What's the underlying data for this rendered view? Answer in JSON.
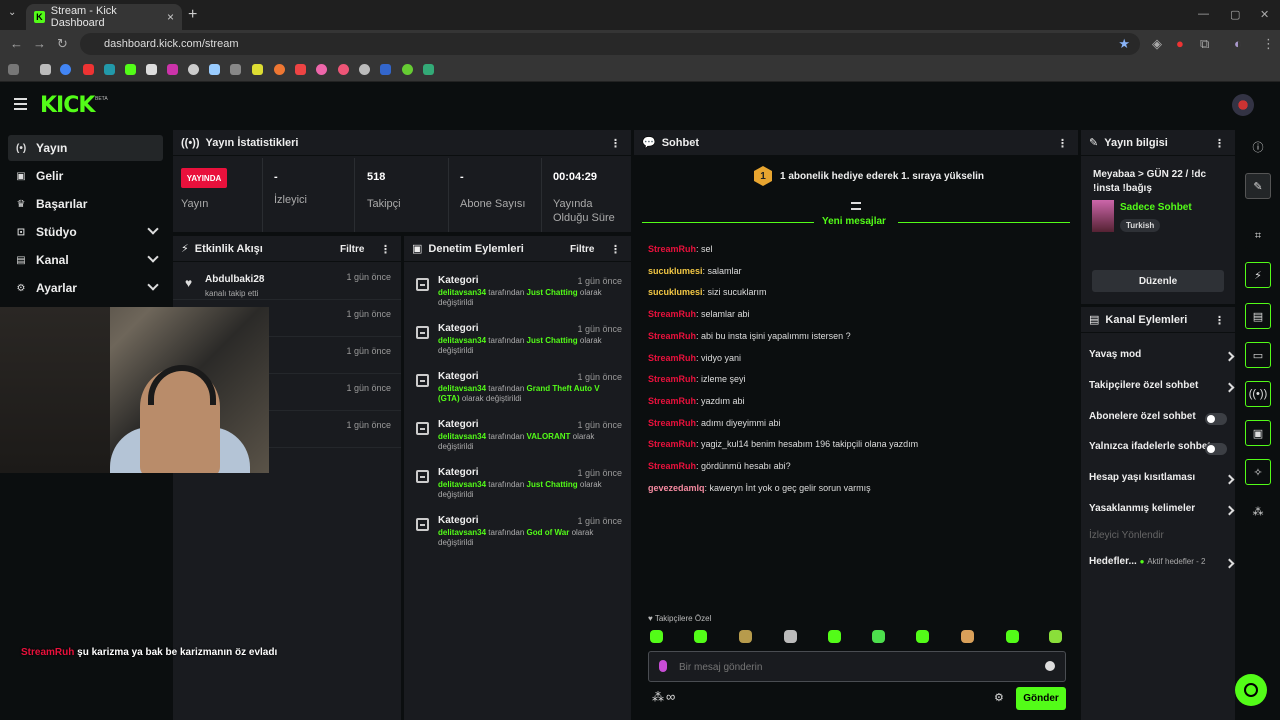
{
  "browser": {
    "tab_title": "Stream - Kick Dashboard",
    "url": "dashboard.kick.com/stream"
  },
  "brand": {
    "logo": "KICK",
    "beta": "BETA",
    "accent": "#53fc18",
    "live_red": "#e9113c"
  },
  "sidebar": {
    "items": [
      {
        "label": "Yayın",
        "icon": "broadcast-icon"
      },
      {
        "label": "Gelir",
        "icon": "revenue-icon"
      },
      {
        "label": "Başarılar",
        "icon": "trophy-icon"
      },
      {
        "label": "Stüdyo",
        "icon": "studio-icon"
      },
      {
        "label": "Kanal",
        "icon": "channel-icon"
      },
      {
        "label": "Ayarlar",
        "icon": "gear-icon"
      }
    ]
  },
  "stats": {
    "title": "Yayın İstatistikleri",
    "live_badge": "YAYINDA",
    "live_label": "Yayın",
    "viewers": {
      "value": "-",
      "label": "İzleyici"
    },
    "followers": {
      "value": "518",
      "label": "Takipçi"
    },
    "subs": {
      "value": "-",
      "label": "Abone Sayısı"
    },
    "duration": {
      "value": "00:04:29",
      "label": "Yayında Olduğu Süre"
    }
  },
  "activity": {
    "title": "Etkinlik Akışı",
    "filter": "Filtre",
    "rows": [
      {
        "name": "Abdulbaki28",
        "desc": "kanalı takip etti",
        "time": "1 gün önce"
      },
      {
        "name": "",
        "desc": "",
        "time": "1 gün önce"
      },
      {
        "name": "",
        "desc": "",
        "time": "1 gün önce"
      },
      {
        "name": "",
        "desc": "",
        "time": "1 gün önce"
      },
      {
        "name": "",
        "desc": "",
        "time": "1 gün önce"
      }
    ]
  },
  "moderation": {
    "title": "Denetim Eylemleri",
    "filter": "Filtre",
    "rows": [
      {
        "title": "Kategori",
        "time": "1 gün önce",
        "user": "delitavsan34",
        "mid": "tarafından",
        "cat": "Just Chatting",
        "end": "olarak değiştirildi"
      },
      {
        "title": "Kategori",
        "time": "1 gün önce",
        "user": "delitavsan34",
        "mid": "tarafından",
        "cat": "Just Chatting",
        "end": "olarak değiştirildi"
      },
      {
        "title": "Kategori",
        "time": "1 gün önce",
        "user": "delitavsan34",
        "mid": "tarafından",
        "cat": "Grand Theft Auto V (GTA)",
        "end": "olarak değiştirildi"
      },
      {
        "title": "Kategori",
        "time": "1 gün önce",
        "user": "delitavsan34",
        "mid": "tarafından",
        "cat": "VALORANT",
        "end": "olarak değiştirildi"
      },
      {
        "title": "Kategori",
        "time": "1 gün önce",
        "user": "delitavsan34",
        "mid": "tarafından",
        "cat": "Just Chatting",
        "end": "olarak değiştirildi"
      },
      {
        "title": "Kategori",
        "time": "1 gün önce",
        "user": "delitavsan34",
        "mid": "tarafından",
        "cat": "God of War",
        "end": "olarak değiştirildi"
      }
    ]
  },
  "chat": {
    "title": "Sohbet",
    "banner": "1 abonelik hediye ederek 1. sıraya yükselin",
    "banner_rank": "1",
    "new_messages": "Yeni mesajlar",
    "messages": [
      {
        "user": "StreamRuh",
        "color": "#e9113c",
        "text": "sel"
      },
      {
        "user": "sucuklumesi",
        "color": "#f2c744",
        "text": "salamlar"
      },
      {
        "user": "sucuklumesi",
        "color": "#f2c744",
        "text": "sizi sucuklarım"
      },
      {
        "user": "StreamRuh",
        "color": "#e9113c",
        "text": "selamlar abi"
      },
      {
        "user": "StreamRuh",
        "color": "#e9113c",
        "text": "abi bu insta işini yapalımmı istersen ?"
      },
      {
        "user": "StreamRuh",
        "color": "#e9113c",
        "text": "vidyo yani"
      },
      {
        "user": "StreamRuh",
        "color": "#e9113c",
        "text": "izleme şeyi"
      },
      {
        "user": "StreamRuh",
        "color": "#e9113c",
        "text": "yazdım abi"
      },
      {
        "user": "StreamRuh",
        "color": "#e9113c",
        "text": "adımı diyeyimmi abi"
      },
      {
        "user": "StreamRuh",
        "color": "#e9113c",
        "text": "yagiz_kul14 benim hesabım 196 takipçili olana yazdım"
      },
      {
        "user": "StreamRuh",
        "color": "#e9113c",
        "text": "gördünmü hesabı abi?"
      },
      {
        "user": "gevezedamlq",
        "color": "#f58aa0",
        "text": "kaweryn İnt yok o geç gelir sorun varmış"
      }
    ],
    "followers_only": "Takipçilere Özel",
    "input_placeholder": "Bir mesaj gönderin",
    "send": "Gönder"
  },
  "stream_info": {
    "title": "Yayın bilgisi",
    "stream_title": "Meyabaa > GÜN 22 / !dc !insta !bağış",
    "category": "Sadece Sohbet",
    "language": "Turkish",
    "edit": "Düzenle"
  },
  "channel_actions": {
    "title": "Kanal Eylemleri",
    "rows": [
      {
        "label": "Yavaş mod",
        "control": "chevron"
      },
      {
        "label": "Takipçilere özel sohbet",
        "control": "chevron"
      },
      {
        "label": "Abonelere özel sohbet",
        "control": "toggle"
      },
      {
        "label": "Yalnızca ifadelerle sohbet",
        "control": "toggle"
      },
      {
        "label": "Hesap yaşı kısıtlaması",
        "control": "chevron"
      },
      {
        "label": "Yasaklanmış kelimeler",
        "control": "chevron"
      }
    ],
    "viewer_redirect": "İzleyici Yönlendir",
    "goals": "Hedefler...",
    "active_goals": "Aktif hedefler - 2"
  },
  "overlay": {
    "user": "StreamRuh",
    "text": "şu karizma ya bak be karizmanın öz evladı"
  }
}
